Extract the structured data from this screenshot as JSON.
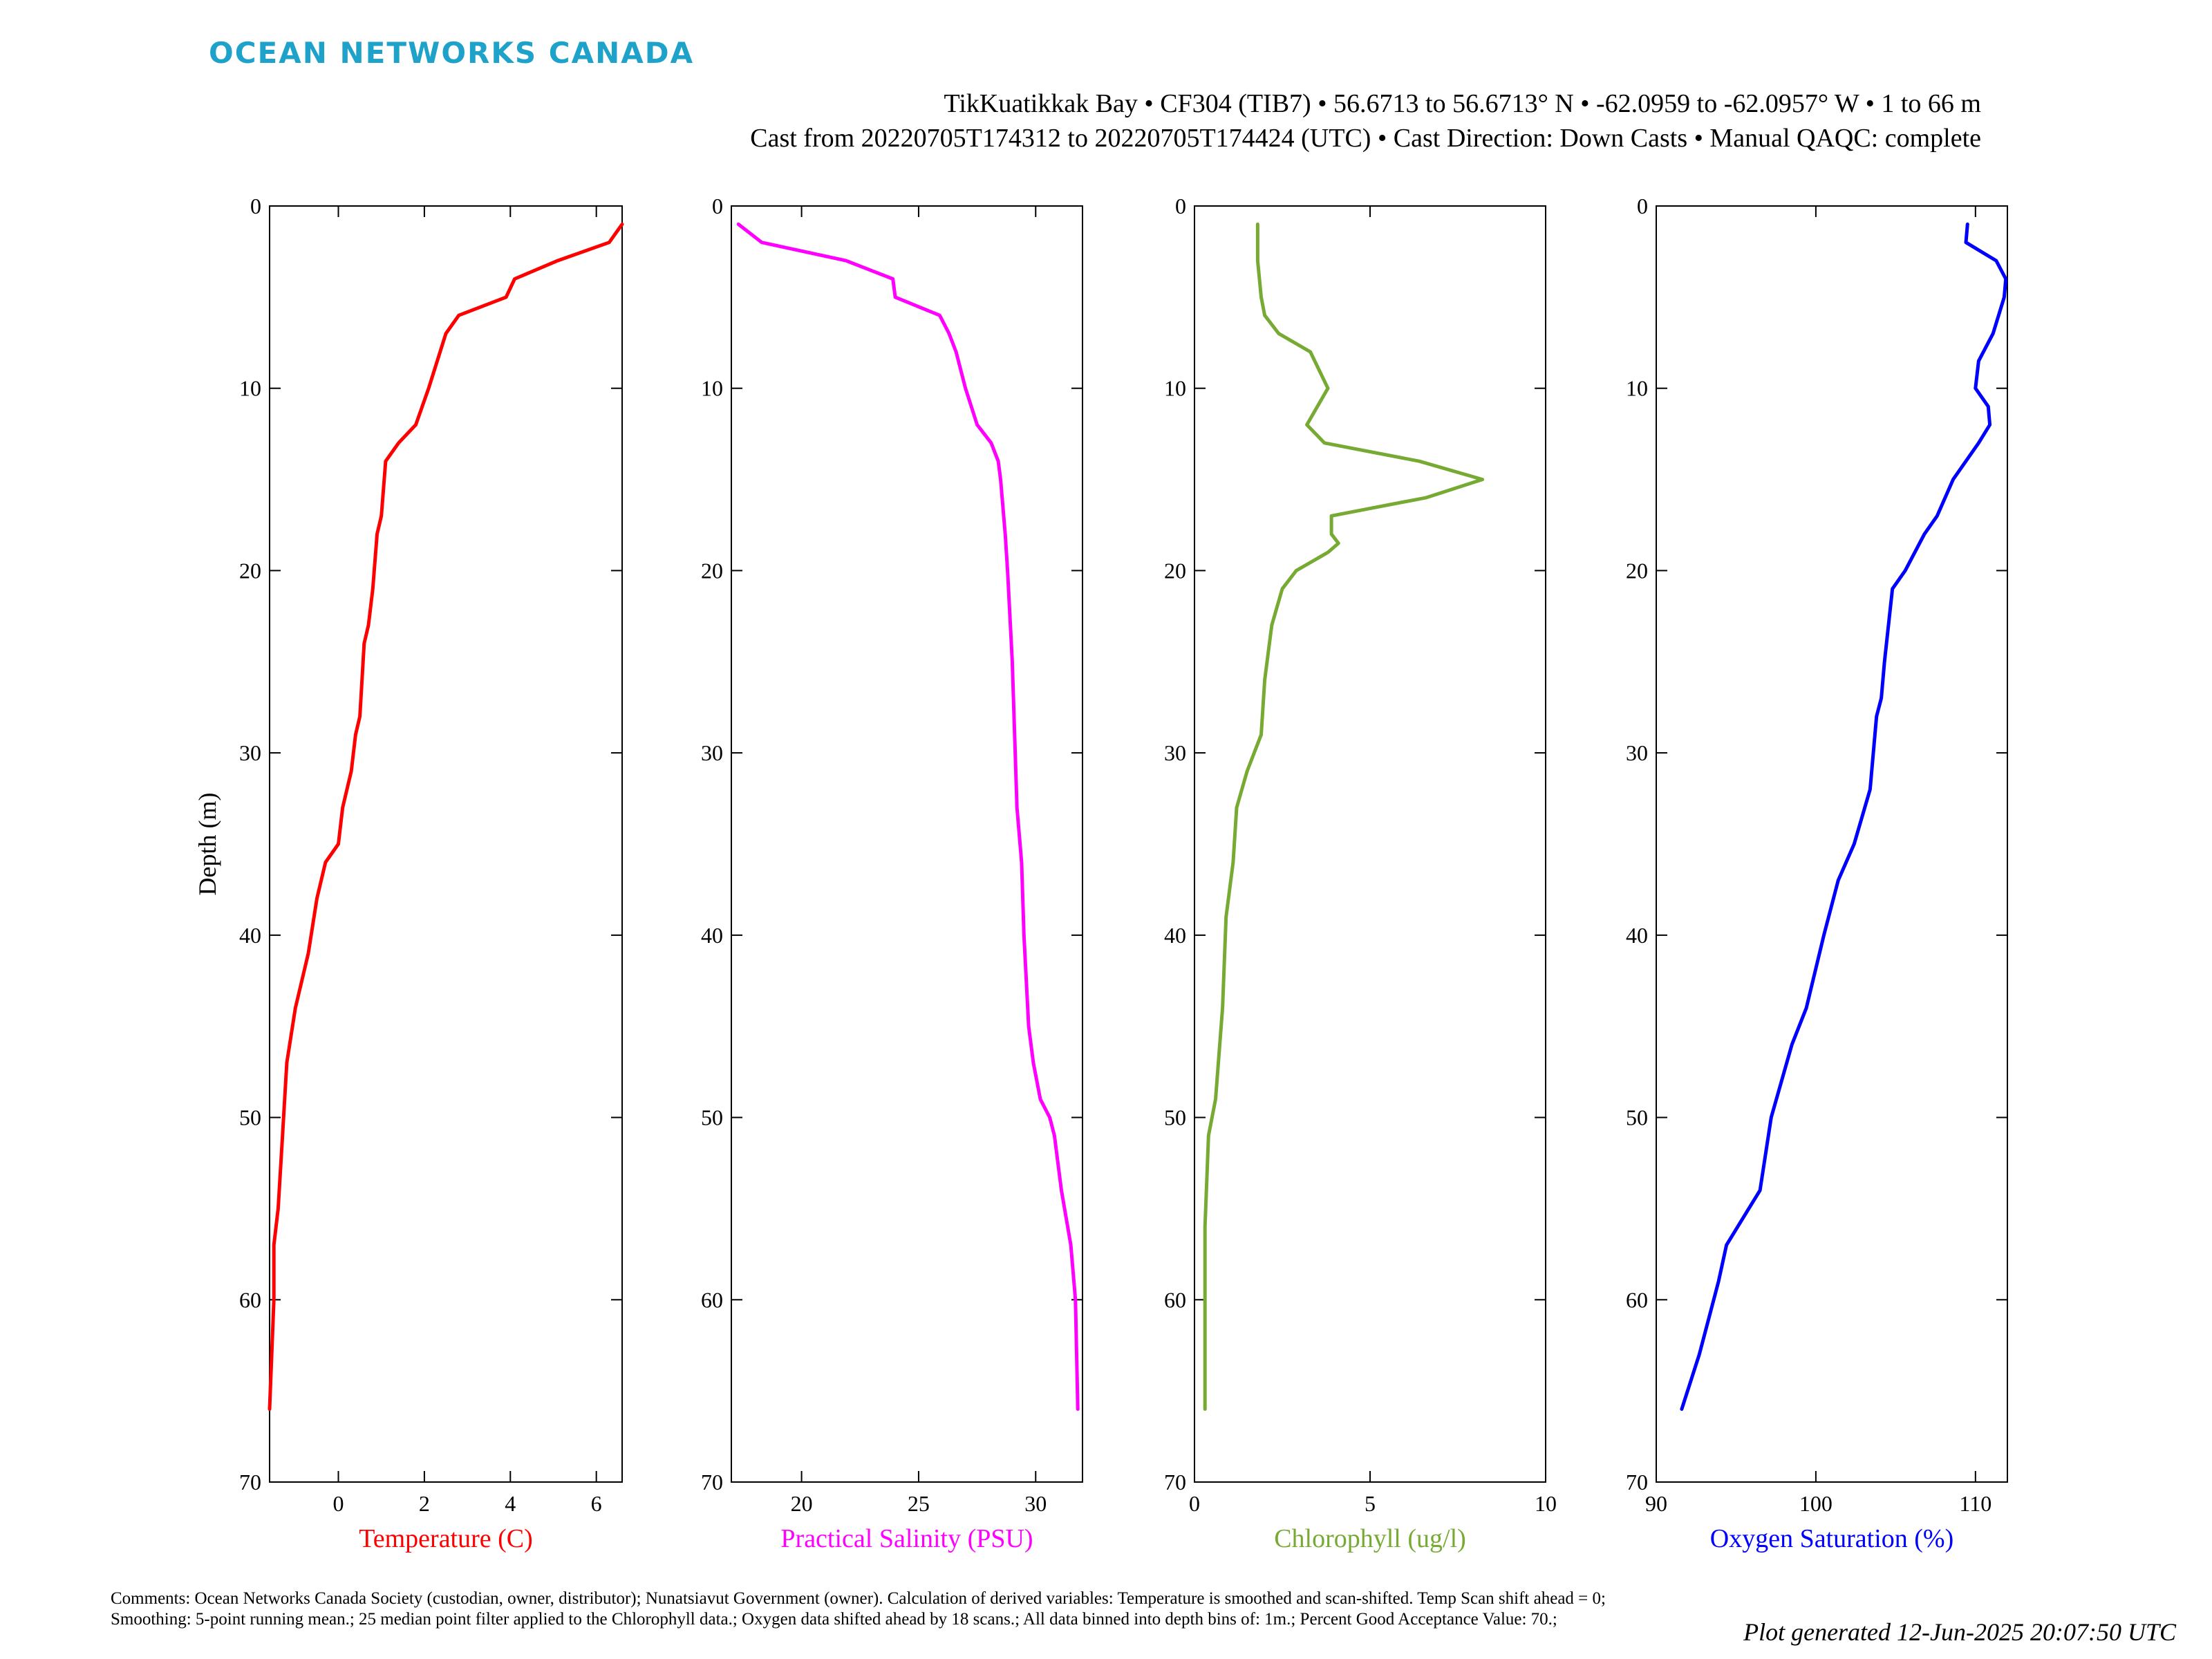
{
  "brand": {
    "text": "OCEAN NETWORKS CANADA",
    "color": "#1fa2c9"
  },
  "header": {
    "line1": "TikKuatikkak Bay • CF304 (TIB7) • 56.6713 to 56.6713° N • -62.0959 to -62.0957° W • 1 to 66 m",
    "line2": "Cast from 20220705T174312 to 20220705T174424 (UTC) • Cast Direction: Down Casts • Manual QAQC: complete"
  },
  "footer": {
    "comments": "Comments: Ocean Networks Canada Society (custodian, owner, distributor); Nunatsiavut Government (owner). Calculation of derived variables: Temperature is smoothed and scan-shifted. Temp Scan shift ahead = 0; Smoothing: 5-point running mean.; 25 median point filter applied to the Chlorophyll data.; Oxygen data shifted ahead by 18 scans.; All data binned into depth bins of: 1m.; Percent Good Acceptance Value: 70.;",
    "generated": "Plot generated 12-Jun-2025 20:07:50 UTC"
  },
  "chart_data": [
    {
      "type": "line",
      "xlabel": "Temperature (C)",
      "ylabel": "Depth (m)",
      "color": "#ff0000",
      "xlim": [
        -1.6,
        6.6
      ],
      "ylim": [
        0,
        70
      ],
      "y_reversed": true,
      "xticks": [
        0,
        2,
        4,
        6
      ],
      "yticks": [
        0,
        10,
        20,
        30,
        40,
        50,
        60,
        70
      ],
      "series": [
        {
          "x": [
            6.6,
            6.3,
            5.1,
            4.1,
            3.9,
            2.8,
            2.5,
            2.1,
            1.8,
            1.4,
            1.1,
            1.0,
            0.9,
            0.8,
            0.7,
            0.6,
            0.5,
            0.4,
            0.3,
            0.1,
            0.0,
            -0.3,
            -0.5,
            -0.7,
            -1.0,
            -1.2,
            -1.3,
            -1.4,
            -1.5,
            -1.5,
            -1.6
          ],
          "y": [
            1,
            2,
            3,
            4,
            5,
            6,
            7,
            10,
            12,
            13,
            14,
            17,
            18,
            21,
            23,
            24,
            28,
            29,
            31,
            33,
            35,
            36,
            38,
            41,
            44,
            47,
            51,
            55,
            57,
            60,
            66
          ]
        }
      ]
    },
    {
      "type": "line",
      "xlabel": "Practical Salinity (PSU)",
      "ylabel": "",
      "color": "#ff00ff",
      "xlim": [
        17.0,
        32.0
      ],
      "ylim": [
        0,
        70
      ],
      "y_reversed": true,
      "xticks": [
        20,
        25,
        30
      ],
      "yticks": [
        0,
        10,
        20,
        30,
        40,
        50,
        60,
        70
      ],
      "series": [
        {
          "x": [
            17.3,
            18.3,
            21.9,
            23.9,
            24.0,
            25.9,
            26.3,
            26.6,
            27.0,
            27.5,
            28.1,
            28.4,
            28.5,
            28.7,
            28.8,
            29.0,
            29.1,
            29.2,
            29.4,
            29.5,
            29.7,
            29.9,
            30.2,
            30.6,
            30.8,
            31.1,
            31.5,
            31.7,
            31.8
          ],
          "y": [
            1,
            2,
            3,
            4,
            5,
            6,
            7,
            8,
            10,
            12,
            13,
            14,
            15,
            18,
            20,
            25,
            29,
            33,
            36,
            40,
            45,
            47,
            49,
            50,
            51,
            54,
            57,
            60,
            66
          ]
        }
      ]
    },
    {
      "type": "line",
      "xlabel": "Chlorophyll (ug/l)",
      "ylabel": "",
      "color": "#77aa33",
      "xlim": [
        0,
        10
      ],
      "ylim": [
        0,
        70
      ],
      "y_reversed": true,
      "xticks": [
        0,
        5,
        10
      ],
      "yticks": [
        0,
        10,
        20,
        30,
        40,
        50,
        60,
        70
      ],
      "series": [
        {
          "x": [
            1.8,
            1.8,
            1.9,
            2.0,
            2.4,
            3.3,
            3.8,
            3.2,
            3.7,
            6.4,
            8.2,
            6.6,
            3.9,
            3.9,
            4.1,
            3.8,
            2.9,
            2.5,
            2.2,
            2.0,
            1.9,
            1.5,
            1.2,
            1.1,
            0.9,
            0.8,
            0.6,
            0.4,
            0.3,
            0.3
          ],
          "y": [
            1,
            3,
            5,
            6,
            7,
            8,
            10,
            12,
            13,
            14,
            15,
            16,
            17,
            18,
            18.5,
            19,
            20,
            21,
            23,
            26,
            29,
            31,
            33,
            36,
            39,
            44,
            49,
            51,
            56,
            66
          ]
        }
      ]
    },
    {
      "type": "line",
      "xlabel": "Oxygen Saturation (%)",
      "ylabel": "",
      "color": "#0000ff",
      "xlim": [
        90,
        112
      ],
      "ylim": [
        0,
        70
      ],
      "y_reversed": true,
      "xticks": [
        90,
        100,
        110
      ],
      "yticks": [
        0,
        10,
        20,
        30,
        40,
        50,
        60,
        70
      ],
      "series": [
        {
          "x": [
            109.5,
            109.4,
            111.3,
            111.9,
            111.8,
            111.1,
            110.2,
            110.0,
            110.8,
            110.9,
            110.2,
            108.6,
            107.6,
            106.8,
            105.6,
            104.8,
            104.3,
            104.1,
            103.8,
            103.4,
            102.4,
            101.4,
            100.5,
            99.4,
            98.5,
            97.2,
            96.5,
            95.8,
            94.4,
            93.9,
            92.7,
            91.6
          ],
          "y": [
            1,
            2,
            3,
            4,
            5,
            7,
            8.5,
            10,
            11,
            12,
            13,
            15,
            17,
            18,
            20,
            21,
            25,
            27,
            28,
            32,
            35,
            37,
            40,
            44,
            46,
            50,
            54,
            55,
            57,
            59,
            63,
            66
          ]
        }
      ]
    }
  ]
}
